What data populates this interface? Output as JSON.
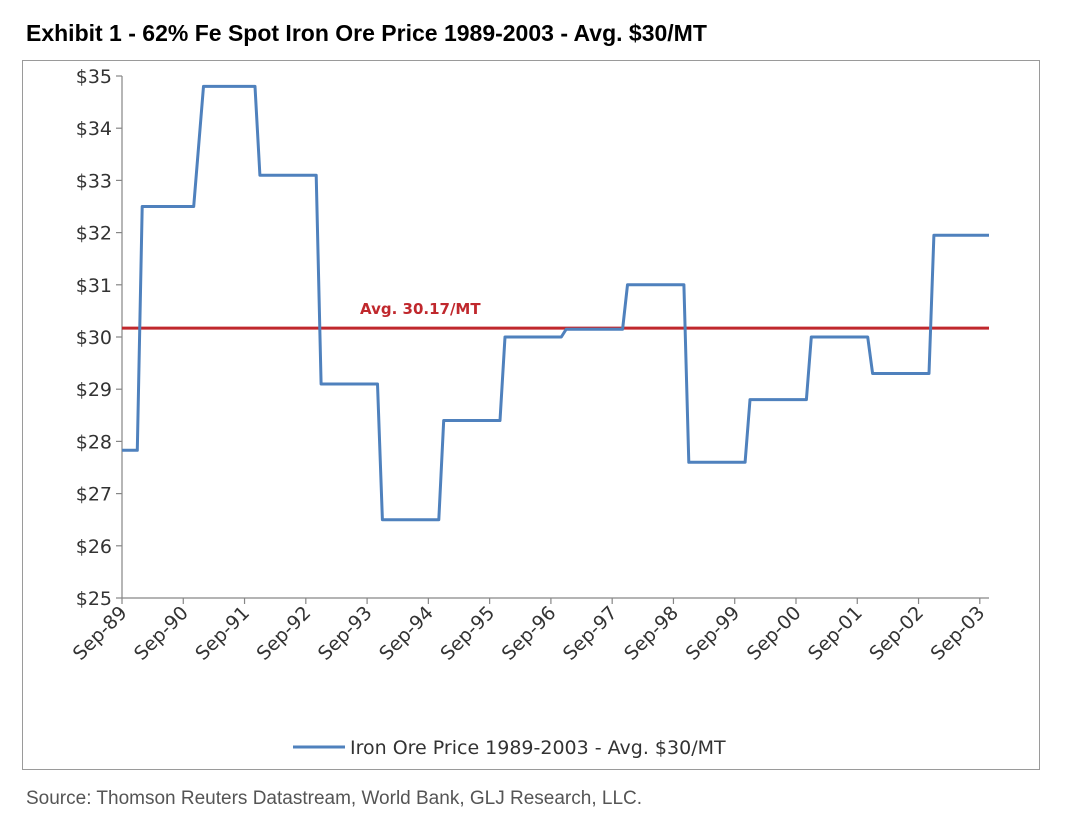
{
  "header": {
    "title": "Exhibit 1 - 62% Fe Spot Iron Ore Price 1989-2003 - Avg. $30/MT"
  },
  "footer": {
    "source": "Source: Thomson Reuters Datastream, World Bank, GLJ Research, LLC."
  },
  "colors": {
    "series_line": "#4f81bd",
    "average_line": "#c0282d",
    "axis": "#868686",
    "plot_border": "#9a9a9a"
  },
  "chart_data": {
    "type": "line",
    "title": "",
    "xlabel": "",
    "ylabel": "",
    "x_tick_labels": [
      "Sep-89",
      "Sep-90",
      "Sep-91",
      "Sep-92",
      "Sep-93",
      "Sep-94",
      "Sep-95",
      "Sep-96",
      "Sep-97",
      "Sep-98",
      "Sep-99",
      "Sep-00",
      "Sep-01",
      "Sep-02",
      "Sep-03"
    ],
    "y_tick_labels": [
      "$25",
      "$26",
      "$27",
      "$28",
      "$29",
      "$30",
      "$31",
      "$32",
      "$33",
      "$34",
      "$35"
    ],
    "ylim": [
      25,
      35
    ],
    "xlim_years": [
      1989.75,
      2003.9
    ],
    "grid": false,
    "legend_position": "bottom",
    "series": [
      {
        "name": "Iron Ore Price 1989-2003 - Avg. $30/MT",
        "color": "#4f81bd",
        "step": true,
        "points": [
          [
            1989.75,
            27.83
          ],
          [
            1990.0,
            27.83
          ],
          [
            1990.08,
            32.5
          ],
          [
            1990.92,
            32.5
          ],
          [
            1991.08,
            34.8
          ],
          [
            1991.92,
            34.8
          ],
          [
            1992.0,
            33.1
          ],
          [
            1992.92,
            33.1
          ],
          [
            1993.0,
            29.1
          ],
          [
            1993.92,
            29.1
          ],
          [
            1994.0,
            26.5
          ],
          [
            1994.92,
            26.5
          ],
          [
            1995.0,
            28.4
          ],
          [
            1995.92,
            28.4
          ],
          [
            1996.0,
            30.0
          ],
          [
            1996.92,
            30.0
          ],
          [
            1997.0,
            30.15
          ],
          [
            1997.92,
            30.15
          ],
          [
            1998.0,
            31.0
          ],
          [
            1998.92,
            31.0
          ],
          [
            1999.0,
            27.6
          ],
          [
            1999.92,
            27.6
          ],
          [
            2000.0,
            28.8
          ],
          [
            2000.92,
            28.8
          ],
          [
            2001.0,
            30.0
          ],
          [
            2001.92,
            30.0
          ],
          [
            2002.0,
            29.3
          ],
          [
            2002.92,
            29.3
          ],
          [
            2003.0,
            31.95
          ],
          [
            2003.9,
            31.95
          ]
        ]
      }
    ],
    "reference_lines": [
      {
        "label": "Avg. 30.17/MT",
        "value": 30.17,
        "color": "#c0282d"
      }
    ]
  }
}
